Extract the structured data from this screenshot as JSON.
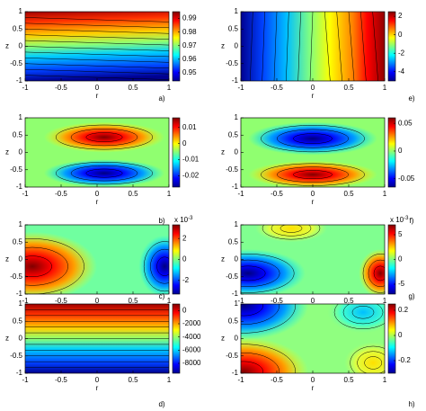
{
  "chart_data": [
    {
      "type": "contour",
      "label": "a)",
      "xlabel": "r",
      "ylabel": "z",
      "xlim": [
        -1,
        1
      ],
      "ylim": [
        -1,
        1
      ],
      "xticks": [
        -1,
        -0.5,
        0,
        0.5,
        1
      ],
      "yticks": [
        -1,
        -0.5,
        0,
        0.5,
        1
      ],
      "colormap": "jet",
      "clim": [
        0.944,
        0.995
      ],
      "cticks": [
        0.95,
        0.96,
        0.97,
        0.98,
        0.99
      ]
    },
    {
      "type": "contour",
      "label": "b)",
      "xlabel": "r",
      "ylabel": "z",
      "xlim": [
        -1,
        1
      ],
      "ylim": [
        -1,
        1
      ],
      "xticks": [
        -1,
        -0.5,
        0,
        0.5,
        1
      ],
      "yticks": [
        -1,
        -0.5,
        0,
        0.5,
        1
      ],
      "colormap": "jet",
      "clim": [
        -0.027,
        0.016
      ],
      "cticks": [
        -0.02,
        -0.01,
        0,
        0.01
      ]
    },
    {
      "type": "contour",
      "label": "c)",
      "xlabel": "r",
      "ylabel": "z",
      "xlim": [
        -1,
        1
      ],
      "ylim": [
        -1,
        1
      ],
      "xticks": [
        -1,
        -0.5,
        0,
        0.5,
        1
      ],
      "yticks": [
        -1,
        -0.5,
        0,
        0.5,
        1
      ],
      "colormap": "jet",
      "clim": [
        -3.3,
        3.3
      ],
      "cticks": [
        -2,
        0,
        2
      ],
      "scale_base": "x 10",
      "scale_exp": "-3"
    },
    {
      "type": "contour",
      "label": "d)",
      "xlabel": "r",
      "ylabel": "z",
      "xlim": [
        -1,
        1
      ],
      "ylim": [
        -1,
        1
      ],
      "xticks": [
        -1,
        -0.5,
        0,
        0.5,
        1
      ],
      "yticks": [
        -1,
        -0.5,
        0,
        0.5,
        1
      ],
      "colormap": "jet",
      "clim": [
        -9500,
        1000
      ],
      "cticks": [
        -8000,
        -6000,
        -4000,
        -2000,
        0
      ]
    },
    {
      "type": "contour",
      "label": "e)",
      "xlabel": "r",
      "ylabel": "z",
      "xlim": [
        -1,
        1
      ],
      "ylim": [
        -1,
        1
      ],
      "xticks": [
        -1,
        -0.5,
        0,
        0.5,
        1
      ],
      "yticks": [
        -1,
        -0.5,
        0,
        0.5,
        1
      ],
      "colormap": "jet",
      "clim": [
        -5,
        2.5
      ],
      "cticks": [
        -4,
        -2,
        0,
        2
      ]
    },
    {
      "type": "contour",
      "label": "f)",
      "xlabel": "r",
      "ylabel": "z",
      "xlim": [
        -1,
        1
      ],
      "ylim": [
        -1,
        1
      ],
      "xticks": [
        -1,
        -0.5,
        0,
        0.5,
        1
      ],
      "yticks": [
        -1,
        -0.5,
        0,
        0.5,
        1
      ],
      "colormap": "jet",
      "clim": [
        -0.065,
        0.06
      ],
      "cticks": [
        -0.05,
        0,
        0.05
      ]
    },
    {
      "type": "contour",
      "label": "g)",
      "xlabel": "r",
      "ylabel": "z",
      "xlim": [
        -1,
        1
      ],
      "ylim": [
        -1,
        1
      ],
      "xticks": [
        -1,
        -0.5,
        0,
        0.5,
        1
      ],
      "yticks": [
        -1,
        -0.5,
        0,
        0.5,
        1
      ],
      "colormap": "jet",
      "clim": [
        -7,
        7
      ],
      "cticks": [
        -5,
        0,
        5
      ],
      "scale_base": "x 10",
      "scale_exp": "-3"
    },
    {
      "type": "contour",
      "label": "h)",
      "xlabel": "r",
      "ylabel": "z",
      "xlim": [
        -1,
        1
      ],
      "ylim": [
        -1,
        1
      ],
      "xticks": [
        -1,
        -0.5,
        0,
        0.5,
        1
      ],
      "yticks": [
        -1,
        -0.5,
        0,
        0.5,
        1
      ],
      "colormap": "jet",
      "clim": [
        -0.3,
        0.25
      ],
      "cticks": [
        -0.2,
        0,
        0.2
      ]
    }
  ]
}
